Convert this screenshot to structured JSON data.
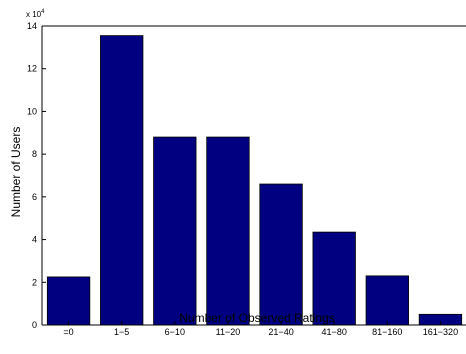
{
  "chart_data": {
    "type": "bar",
    "title": "",
    "xlabel": "Number of Observed Ratings",
    "ylabel": "Number of Users",
    "categories": [
      "=0",
      "1−5",
      "6−10",
      "11−20",
      "21−40",
      "41−80",
      "81−160",
      "161−320"
    ],
    "values": [
      22500,
      135500,
      88000,
      88000,
      66000,
      43500,
      23000,
      5000
    ],
    "ylim": [
      0,
      140000
    ],
    "yticks": [
      0,
      20000,
      40000,
      60000,
      80000,
      100000,
      120000,
      140000
    ],
    "ytick_labels": [
      "0",
      "2",
      "4",
      "6",
      "8",
      "10",
      "12",
      "14"
    ],
    "multiplier_base": "x 10",
    "multiplier_exp": "4",
    "bar_color": "#000080",
    "grid": false,
    "legend": false
  }
}
